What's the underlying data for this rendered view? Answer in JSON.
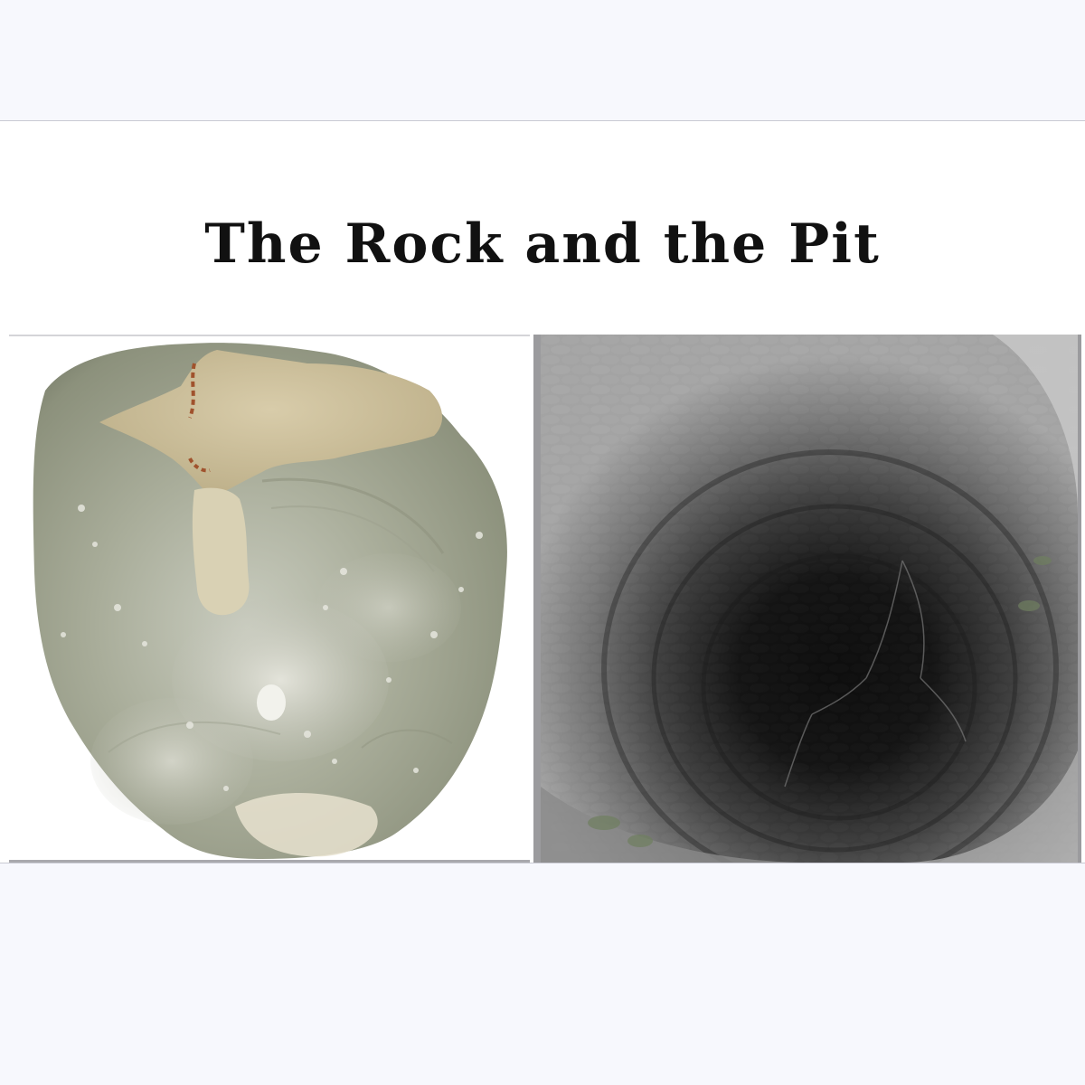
{
  "slide": {
    "title": "The Rock and the Pit"
  },
  "images": {
    "left": {
      "icon": "flint-rock-photo"
    },
    "right": {
      "icon": "stone-well-pit-photo"
    }
  }
}
